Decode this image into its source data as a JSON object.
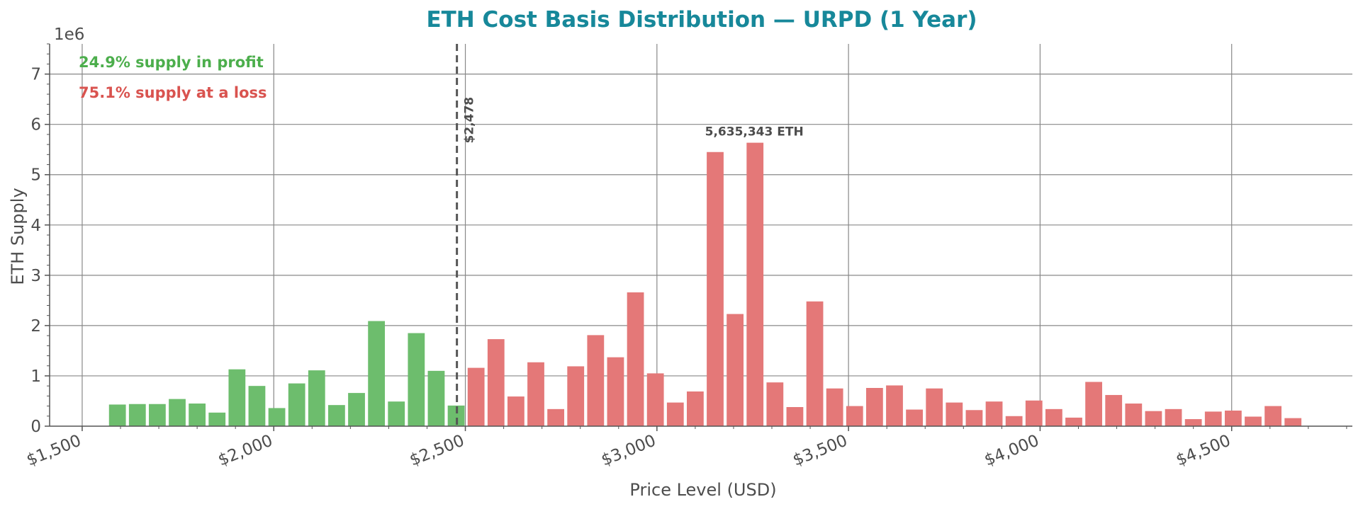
{
  "chart_data": {
    "type": "bar",
    "title": "ETH Cost Basis Distribution — URPD (1 Year)",
    "xlabel": "Price Level (USD)",
    "ylabel": "ETH Supply",
    "y_multiplier_label": "1e6",
    "xlim": [
      1415,
      4815
    ],
    "ylim": [
      0,
      7600000
    ],
    "x_ticks": [
      1500,
      2000,
      2500,
      3000,
      3500,
      4000,
      4500
    ],
    "x_tick_labels": [
      "$1,500",
      "$2,000",
      "$2,500",
      "$3,000",
      "$3,500",
      "$4,000",
      "$4,500"
    ],
    "y_ticks": [
      0,
      1000000,
      2000000,
      3000000,
      4000000,
      5000000,
      6000000,
      7000000
    ],
    "y_tick_labels": [
      "0",
      "1",
      "2",
      "3",
      "4",
      "5",
      "6",
      "7"
    ],
    "grid": true,
    "bar_width": 44,
    "current_price": 2478,
    "current_price_label": "$2,478",
    "peak_label": "5,635,343 ETH",
    "annotations": {
      "profit": "24.9% supply in profit",
      "loss": "75.1% supply at a loss"
    },
    "colors": {
      "profit": "#6dbd6d",
      "loss": "#e47878",
      "title": "#17889a",
      "profit_text": "#4cae4c",
      "loss_text": "#d9534f"
    },
    "series": [
      {
        "name": "profit",
        "x": [
          1592,
          1644,
          1696,
          1748,
          1800,
          1852,
          1904,
          1956,
          2008,
          2060,
          2112,
          2164,
          2216,
          2268,
          2320,
          2372,
          2424,
          2476
        ],
        "values": [
          430000,
          440000,
          440000,
          540000,
          450000,
          270000,
          1130000,
          800000,
          360000,
          850000,
          1110000,
          420000,
          660000,
          2090000,
          490000,
          1850000,
          1100000,
          410000
        ]
      },
      {
        "name": "loss",
        "x": [
          2528,
          2580,
          2632,
          2684,
          2736,
          2788,
          2840,
          2892,
          2944,
          2996,
          3048,
          3100,
          3152,
          3204,
          3256,
          3308,
          3360,
          3412,
          3464,
          3516,
          3568,
          3620,
          3672,
          3724,
          3776,
          3828,
          3880,
          3932,
          3984,
          4036,
          4088,
          4140,
          4192,
          4244,
          4296,
          4348,
          4400,
          4452,
          4504,
          4556,
          4608,
          4660
        ],
        "values": [
          1160000,
          1730000,
          590000,
          1270000,
          340000,
          1190000,
          1810000,
          1370000,
          2660000,
          1050000,
          470000,
          690000,
          5450000,
          2230000,
          5635343,
          870000,
          380000,
          2480000,
          750000,
          400000,
          760000,
          810000,
          330000,
          750000,
          470000,
          320000,
          490000,
          200000,
          510000,
          340000,
          170000,
          880000,
          620000,
          450000,
          300000,
          340000,
          140000,
          290000,
          310000,
          190000,
          400000,
          160000
        ]
      }
    ]
  }
}
